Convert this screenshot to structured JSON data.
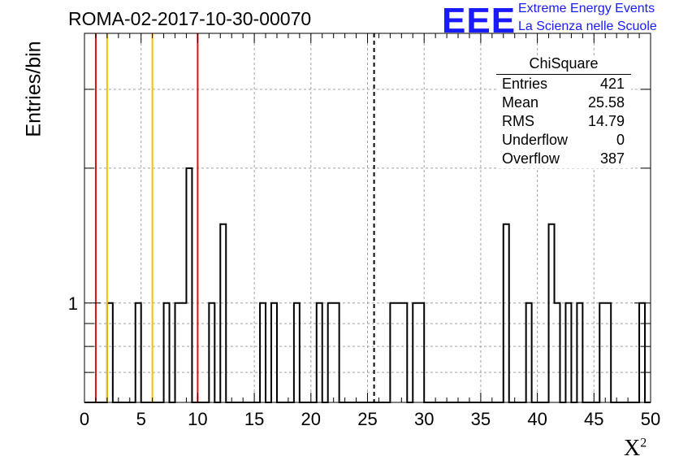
{
  "header": {
    "title": "ROMA-02-2017-10-30-00070",
    "logo_text": "EEE",
    "logo_line1": "Extreme Energy Events",
    "logo_line2": "La Scienza nelle Scuole"
  },
  "stats_box": {
    "title": "ChiSquare",
    "rows": [
      {
        "label": "Entries",
        "value": "421"
      },
      {
        "label": "Mean",
        "value": "25.58"
      },
      {
        "label": "RMS",
        "value": "14.79"
      },
      {
        "label": "Underflow",
        "value": "0"
      },
      {
        "label": "Overflow",
        "value": "387"
      }
    ]
  },
  "colors": {
    "histogram": "#000000",
    "red_lines": "#dd1111",
    "yellow_lines": "#f2c200",
    "grid": "#a0a0a0",
    "logo": "#1a1aff"
  },
  "chart_data": {
    "type": "bar",
    "histogram": true,
    "xlabel": "X",
    "xlabel_superscript": "2",
    "ylabel": "Entries/bin",
    "xlim": [
      0,
      50
    ],
    "ylim": [
      0.6,
      4.0
    ],
    "log_y": true,
    "grid": true,
    "x_ticks": [
      0,
      5,
      10,
      15,
      20,
      25,
      30,
      35,
      40,
      45,
      50
    ],
    "y_tick_labels": [
      {
        "value": 1,
        "label": "1"
      }
    ],
    "bin_width": 0.5,
    "bins": [
      {
        "x": 2.0,
        "count": 1
      },
      {
        "x": 4.5,
        "count": 1
      },
      {
        "x": 7.0,
        "count": 1
      },
      {
        "x": 8.0,
        "count": 1
      },
      {
        "x": 8.5,
        "count": 1
      },
      {
        "x": 9.0,
        "count": 2
      },
      {
        "x": 11.0,
        "count": 1
      },
      {
        "x": 12.0,
        "count": 1.5
      },
      {
        "x": 15.5,
        "count": 1
      },
      {
        "x": 16.5,
        "count": 1
      },
      {
        "x": 18.5,
        "count": 1
      },
      {
        "x": 20.5,
        "count": 1
      },
      {
        "x": 21.5,
        "count": 1
      },
      {
        "x": 22.0,
        "count": 1
      },
      {
        "x": 27.0,
        "count": 1
      },
      {
        "x": 27.5,
        "count": 1
      },
      {
        "x": 28.0,
        "count": 1
      },
      {
        "x": 29.0,
        "count": 1
      },
      {
        "x": 29.5,
        "count": 1
      },
      {
        "x": 37.0,
        "count": 1.5
      },
      {
        "x": 39.0,
        "count": 1
      },
      {
        "x": 41.0,
        "count": 1.5
      },
      {
        "x": 41.5,
        "count": 1
      },
      {
        "x": 42.5,
        "count": 1
      },
      {
        "x": 43.5,
        "count": 1
      },
      {
        "x": 45.5,
        "count": 1
      },
      {
        "x": 46.0,
        "count": 1
      },
      {
        "x": 49.0,
        "count": 1
      }
    ],
    "vertical_lines": [
      {
        "x": 1.0,
        "color": "red",
        "style": "solid"
      },
      {
        "x": 2.0,
        "color": "yellow",
        "style": "solid"
      },
      {
        "x": 6.0,
        "color": "yellow",
        "style": "solid"
      },
      {
        "x": 10.0,
        "color": "red",
        "style": "solid"
      },
      {
        "x": 25.58,
        "color": "black",
        "style": "dashed"
      }
    ]
  }
}
